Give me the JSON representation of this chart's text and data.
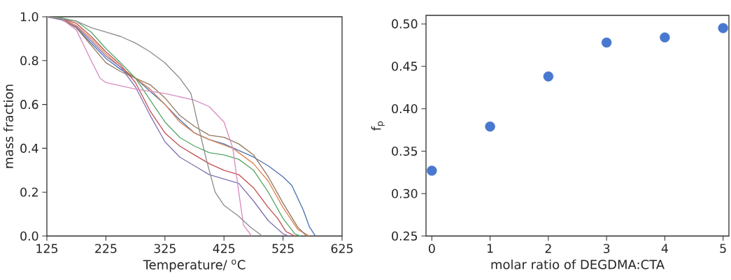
{
  "chart_data": [
    {
      "type": "line",
      "xlabel": "Temperature/ $^{o}$C",
      "ylabel": "mass fraction",
      "xlim": [
        125,
        625
      ],
      "ylim": [
        0,
        1
      ],
      "xticks": [
        125,
        225,
        325,
        425,
        525,
        625
      ],
      "yticks": [
        {
          "value": 0,
          "label": "0.0"
        },
        0.2,
        0.4,
        0.6,
        0.8,
        {
          "value": 1,
          "label": "1.0"
        }
      ],
      "grid": false,
      "marker": "none",
      "line_style": "solid",
      "series": [
        {
          "color": "#4c72b0",
          "x": [
            125,
            150,
            175,
            200,
            225,
            250,
            275,
            300,
            325,
            350,
            375,
            400,
            425,
            450,
            475,
            500,
            525,
            540,
            559,
            570,
            580
          ],
          "values": [
            1.0,
            0.99,
            0.95,
            0.88,
            0.81,
            0.76,
            0.72,
            0.66,
            0.6,
            0.53,
            0.47,
            0.44,
            0.42,
            0.39,
            0.36,
            0.32,
            0.27,
            0.23,
            0.12,
            0.04,
            0.0
          ]
        },
        {
          "color": "#dd8452",
          "x": [
            125,
            150,
            175,
            200,
            225,
            250,
            275,
            300,
            325,
            350,
            375,
            400,
            440,
            475,
            500,
            525,
            550,
            570
          ],
          "values": [
            1.0,
            0.99,
            0.96,
            0.9,
            0.83,
            0.77,
            0.72,
            0.67,
            0.6,
            0.52,
            0.47,
            0.44,
            0.4,
            0.33,
            0.25,
            0.13,
            0.03,
            0.0
          ]
        },
        {
          "color": "#55a868",
          "x": [
            125,
            150,
            175,
            200,
            225,
            250,
            275,
            300,
            325,
            350,
            375,
            400,
            425,
            450,
            475,
            500,
            525,
            545,
            555
          ],
          "values": [
            1.0,
            0.995,
            0.98,
            0.93,
            0.855,
            0.79,
            0.72,
            0.62,
            0.52,
            0.45,
            0.41,
            0.38,
            0.37,
            0.35,
            0.3,
            0.2,
            0.08,
            0.01,
            0.0
          ]
        },
        {
          "color": "#c44e52",
          "x": [
            125,
            150,
            175,
            200,
            225,
            250,
            275,
            300,
            325,
            350,
            375,
            400,
            425,
            450,
            475,
            500,
            516,
            530,
            545
          ],
          "values": [
            1.0,
            0.99,
            0.97,
            0.91,
            0.84,
            0.78,
            0.7,
            0.57,
            0.47,
            0.41,
            0.37,
            0.33,
            0.3,
            0.28,
            0.22,
            0.13,
            0.08,
            0.02,
            0.0
          ]
        },
        {
          "color": "#8172b3",
          "x": [
            125,
            150,
            175,
            200,
            225,
            250,
            275,
            300,
            325,
            350,
            375,
            400,
            425,
            450,
            475,
            500,
            525,
            535
          ],
          "values": [
            1.0,
            0.985,
            0.955,
            0.89,
            0.82,
            0.77,
            0.68,
            0.55,
            0.43,
            0.36,
            0.32,
            0.28,
            0.26,
            0.24,
            0.16,
            0.07,
            0.01,
            0.0
          ]
        },
        {
          "color": "#937860",
          "x": [
            125,
            150,
            175,
            200,
            225,
            250,
            275,
            300,
            325,
            350,
            375,
            400,
            425,
            450,
            475,
            500,
            525,
            550,
            565
          ],
          "values": [
            1.0,
            0.99,
            0.95,
            0.87,
            0.79,
            0.75,
            0.72,
            0.69,
            0.63,
            0.55,
            0.5,
            0.46,
            0.45,
            0.42,
            0.37,
            0.27,
            0.15,
            0.04,
            0.0
          ]
        },
        {
          "color": "#da8bc3",
          "x": [
            125,
            150,
            175,
            200,
            215,
            225,
            275,
            325,
            375,
            400,
            425,
            440,
            450,
            458,
            472
          ],
          "values": [
            1.0,
            0.99,
            0.94,
            0.8,
            0.72,
            0.7,
            0.67,
            0.65,
            0.62,
            0.59,
            0.52,
            0.4,
            0.2,
            0.05,
            0.0
          ]
        },
        {
          "color": "#8c8c8c",
          "x": [
            125,
            175,
            200,
            225,
            250,
            275,
            300,
            325,
            350,
            369,
            380,
            395,
            410,
            425,
            450,
            470,
            490
          ],
          "values": [
            1.0,
            0.98,
            0.95,
            0.93,
            0.91,
            0.88,
            0.84,
            0.79,
            0.72,
            0.65,
            0.52,
            0.35,
            0.2,
            0.14,
            0.09,
            0.04,
            0.0
          ]
        }
      ]
    },
    {
      "type": "scatter",
      "xlabel": "molar ratio of DEGDMA:CTA",
      "ylabel": "f$_{p}$",
      "xlim": [
        -0.1,
        5.1
      ],
      "ylim": [
        0.25,
        0.51
      ],
      "xticks": [
        0,
        1,
        2,
        3,
        4,
        5
      ],
      "yticks": [
        {
          "value": 0.25,
          "label": "0.25"
        },
        {
          "value": 0.3,
          "label": "0.30"
        },
        {
          "value": 0.35,
          "label": "0.35"
        },
        {
          "value": 0.4,
          "label": "0.40"
        },
        {
          "value": 0.45,
          "label": "0.45"
        },
        {
          "value": 0.5,
          "label": "0.50"
        }
      ],
      "grid": false,
      "marker": "circle",
      "series": [
        {
          "color": "#4878cf",
          "x": [
            0,
            1,
            2,
            3,
            4,
            5
          ],
          "values": [
            0.327,
            0.379,
            0.438,
            0.478,
            0.484,
            0.495
          ]
        }
      ]
    }
  ]
}
